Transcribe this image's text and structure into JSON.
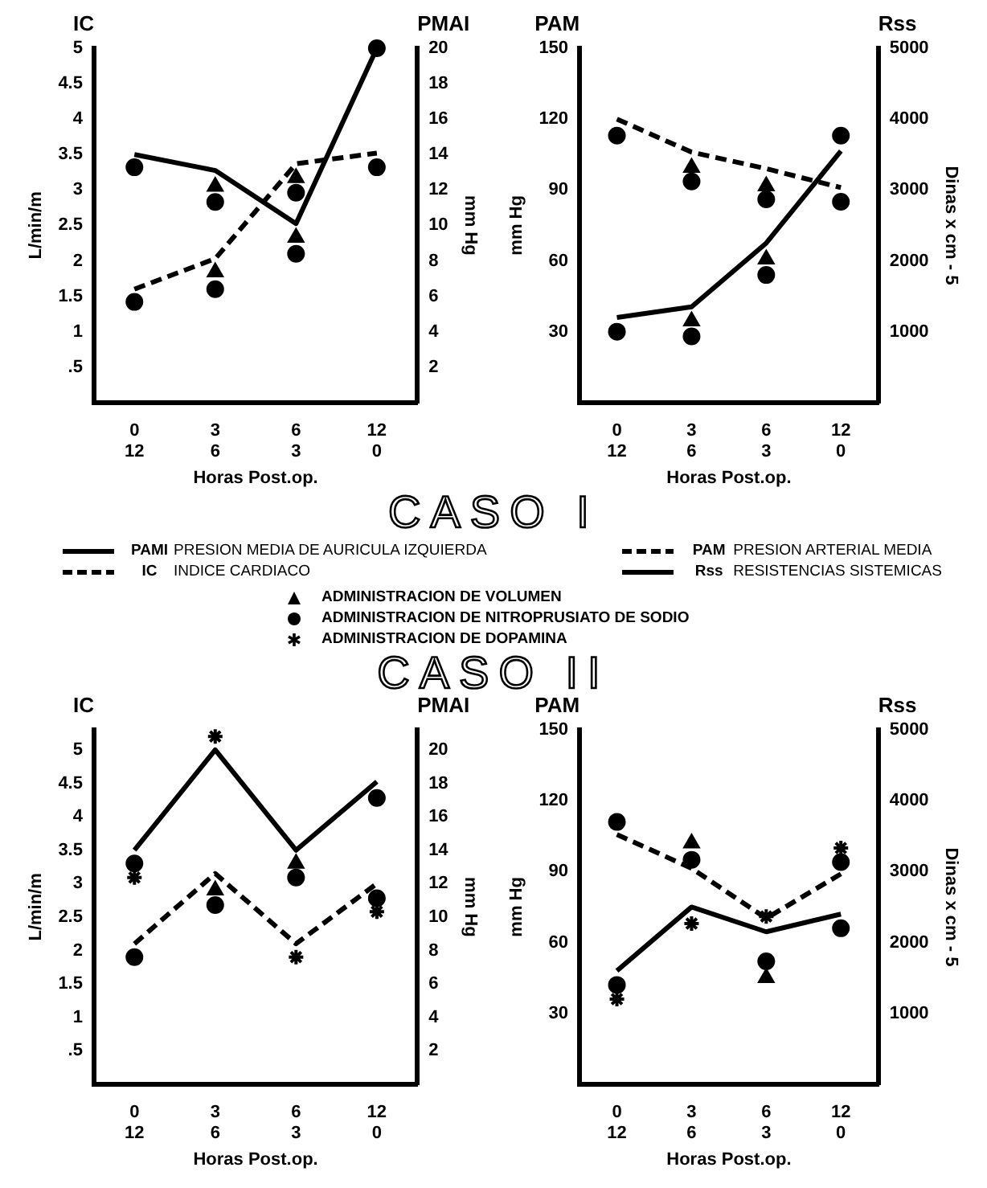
{
  "chart_data": [
    {
      "type": "line",
      "categories": [
        "0\n12",
        "3\n6",
        "6\n3",
        "12\n0"
      ],
      "xlabel": "Horas Post.op.",
      "ylabel": "L/min/m",
      "y2label": "mm Hg",
      "annotations": [
        "IC",
        "PMAI"
      ],
      "ylim": [
        0,
        5
      ],
      "yticks": [
        {
          "value": 0.5,
          "label": ".5"
        },
        1,
        1.5,
        2,
        2.5,
        3,
        3.5,
        4,
        4.5,
        5
      ],
      "y2lim": [
        0,
        20
      ],
      "y2ticks": [
        2,
        4,
        6,
        8,
        10,
        12,
        14,
        16,
        18,
        20
      ],
      "series": [
        {
          "type": "line",
          "axis": "y2",
          "line_style": "solid",
          "marker": "none",
          "color": "#000000",
          "values": [
            14,
            13.1,
            10.1,
            20
          ]
        },
        {
          "type": "line",
          "line_style": "dashed",
          "marker": "none",
          "color": "#000000",
          "values": [
            1.6,
            2.03,
            3.37,
            3.52
          ]
        },
        {
          "type": "scatter",
          "marker": "triangle",
          "color": "#000000",
          "x": [
            "3\n6",
            "3\n6",
            "6\n3",
            "6\n3"
          ],
          "values": [
            3.05,
            1.84,
            3.17,
            2.33
          ]
        },
        {
          "type": "scatter",
          "marker": "circle",
          "color": "#000000",
          "x": [
            "0\n12",
            "0\n12",
            "3\n6",
            "3\n6",
            "6\n3",
            "6\n3",
            "12\n0",
            "12\n0"
          ],
          "values": [
            3.32,
            1.42,
            2.83,
            1.6,
            2.96,
            2.1,
            5,
            3.32
          ]
        }
      ]
    },
    {
      "type": "line",
      "categories": [
        "0\n12",
        "3\n6",
        "6\n3",
        "12\n0"
      ],
      "xlabel": "Horas Post.op.",
      "ylabel": "mm Hg",
      "y2label": "Dinas x cm - 5",
      "annotations": [
        "PAM",
        "Rss"
      ],
      "ylim": [
        0,
        150
      ],
      "yticks": [
        30,
        60,
        90,
        120,
        150
      ],
      "y2lim": [
        0,
        5000
      ],
      "y2ticks": [
        1000,
        2000,
        3000,
        4000,
        5000
      ],
      "series": [
        {
          "type": "line",
          "line_style": "dashed",
          "marker": "none",
          "color": "#000000",
          "values": [
            120,
            106,
            99,
            91
          ]
        },
        {
          "type": "line",
          "axis": "y2",
          "line_style": "solid",
          "marker": "none",
          "color": "#000000",
          "values": [
            1200,
            1350,
            2250,
            3550
          ]
        },
        {
          "type": "scatter",
          "marker": "triangle",
          "color": "#000000",
          "x": [
            "3\n6",
            "3\n6",
            "6\n3",
            "6\n3"
          ],
          "values": [
            99.5,
            34.5,
            91.6,
            60.7
          ]
        },
        {
          "type": "scatter",
          "marker": "circle",
          "color": "#000000",
          "x": [
            "0\n12",
            "0\n12",
            "3\n6",
            "3\n6",
            "6\n3",
            "6\n3",
            "12\n0",
            "12\n0"
          ],
          "values": [
            113,
            30,
            93.6,
            28,
            86,
            54,
            113,
            85
          ]
        }
      ]
    },
    {
      "type": "other",
      "title": "CASO I",
      "annotations": [
        "PAMI",
        "PRESION MEDIA DE AURICULA IZQUIERDA",
        "PAM",
        "PRESION ARTERIAL MEDIA",
        "IC",
        "INDICE CARDIACO",
        "Rss",
        "RESISTENCIAS SISTEMICAS",
        "ADMINISTRACION DE VOLUMEN",
        "ADMINISTRACION DE NITROPRUSIATO DE SODIO",
        "ADMINISTRACION DE DOPAMINA",
        "CASO II"
      ]
    },
    {
      "type": "line",
      "categories": [
        "0\n12",
        "3\n6",
        "6\n3",
        "12\n0"
      ],
      "xlabel": "Horas Post.op.",
      "ylabel": "L/min/m",
      "y2label": "mm Hg",
      "annotations": [
        "IC",
        "PMAI"
      ],
      "ylim": [
        0,
        5.3
      ],
      "yticks": [
        {
          "value": 0.5,
          "label": ".5"
        },
        1,
        1.5,
        2,
        2.5,
        3,
        3.5,
        4,
        4.5,
        5
      ],
      "y2lim": [
        0,
        21.2
      ],
      "y2ticks": [
        2,
        4,
        6,
        8,
        10,
        12,
        14,
        16,
        18,
        20
      ],
      "series": [
        {
          "type": "line",
          "axis": "y2",
          "line_style": "solid",
          "marker": "none",
          "color": "#000000",
          "values": [
            14,
            20,
            14,
            18.1
          ]
        },
        {
          "type": "line",
          "line_style": "dashed",
          "marker": "none",
          "color": "#000000",
          "values": [
            2.1,
            3.15,
            2.1,
            3.0
          ]
        },
        {
          "type": "scatter",
          "marker": "triangle",
          "color": "#000000",
          "x": [
            "3\n6",
            "6\n3"
          ],
          "values": [
            2.9,
            3.3
          ]
        },
        {
          "type": "scatter",
          "marker": "circle",
          "color": "#000000",
          "x": [
            "0\n12",
            "0\n12",
            "3\n6",
            "6\n3",
            "12\n0",
            "12\n0"
          ],
          "values": [
            3.3,
            1.9,
            2.68,
            3.09,
            2.78,
            4.28
          ]
        },
        {
          "type": "scatter",
          "marker": "cross",
          "color": "#000000",
          "x": [
            "0\n12",
            "3\n6",
            "6\n3",
            "12\n0"
          ],
          "values": [
            3.09,
            5.2,
            1.9,
            2.58
          ]
        }
      ]
    },
    {
      "type": "line",
      "categories": [
        "0\n12",
        "3\n6",
        "6\n3",
        "12\n0"
      ],
      "xlabel": "Horas Post.op.",
      "ylabel": "mm Hg",
      "y2label": "Dinas x cm - 5",
      "annotations": [
        "PAM",
        "Rss"
      ],
      "ylim": [
        0,
        150
      ],
      "yticks": [
        30,
        60,
        90,
        120,
        150
      ],
      "y2lim": [
        0,
        5000
      ],
      "y2ticks": [
        1000,
        2000,
        3000,
        4000,
        5000
      ],
      "series": [
        {
          "type": "line",
          "line_style": "dashed",
          "marker": "none",
          "color": "#000000",
          "values": [
            105.7,
            91.4,
            70.2,
            89
          ]
        },
        {
          "type": "line",
          "axis": "y2",
          "line_style": "solid",
          "marker": "none",
          "color": "#000000",
          "values": [
            1600,
            2500,
            2150,
            2400
          ]
        },
        {
          "type": "scatter",
          "marker": "triangle",
          "color": "#000000",
          "x": [
            "3\n6",
            "6\n3"
          ],
          "values": [
            102,
            45
          ]
        },
        {
          "type": "scatter",
          "marker": "circle",
          "color": "#000000",
          "x": [
            "0\n12",
            "0\n12",
            "3\n6",
            "6\n3",
            "12\n0",
            "12\n0"
          ],
          "values": [
            111,
            42,
            95,
            52,
            94,
            66
          ]
        },
        {
          "type": "scatter",
          "marker": "cross",
          "color": "#000000",
          "x": [
            "0\n12",
            "3\n6",
            "6\n3",
            "12\n0"
          ],
          "values": [
            36,
            68,
            71,
            100
          ]
        }
      ]
    }
  ]
}
